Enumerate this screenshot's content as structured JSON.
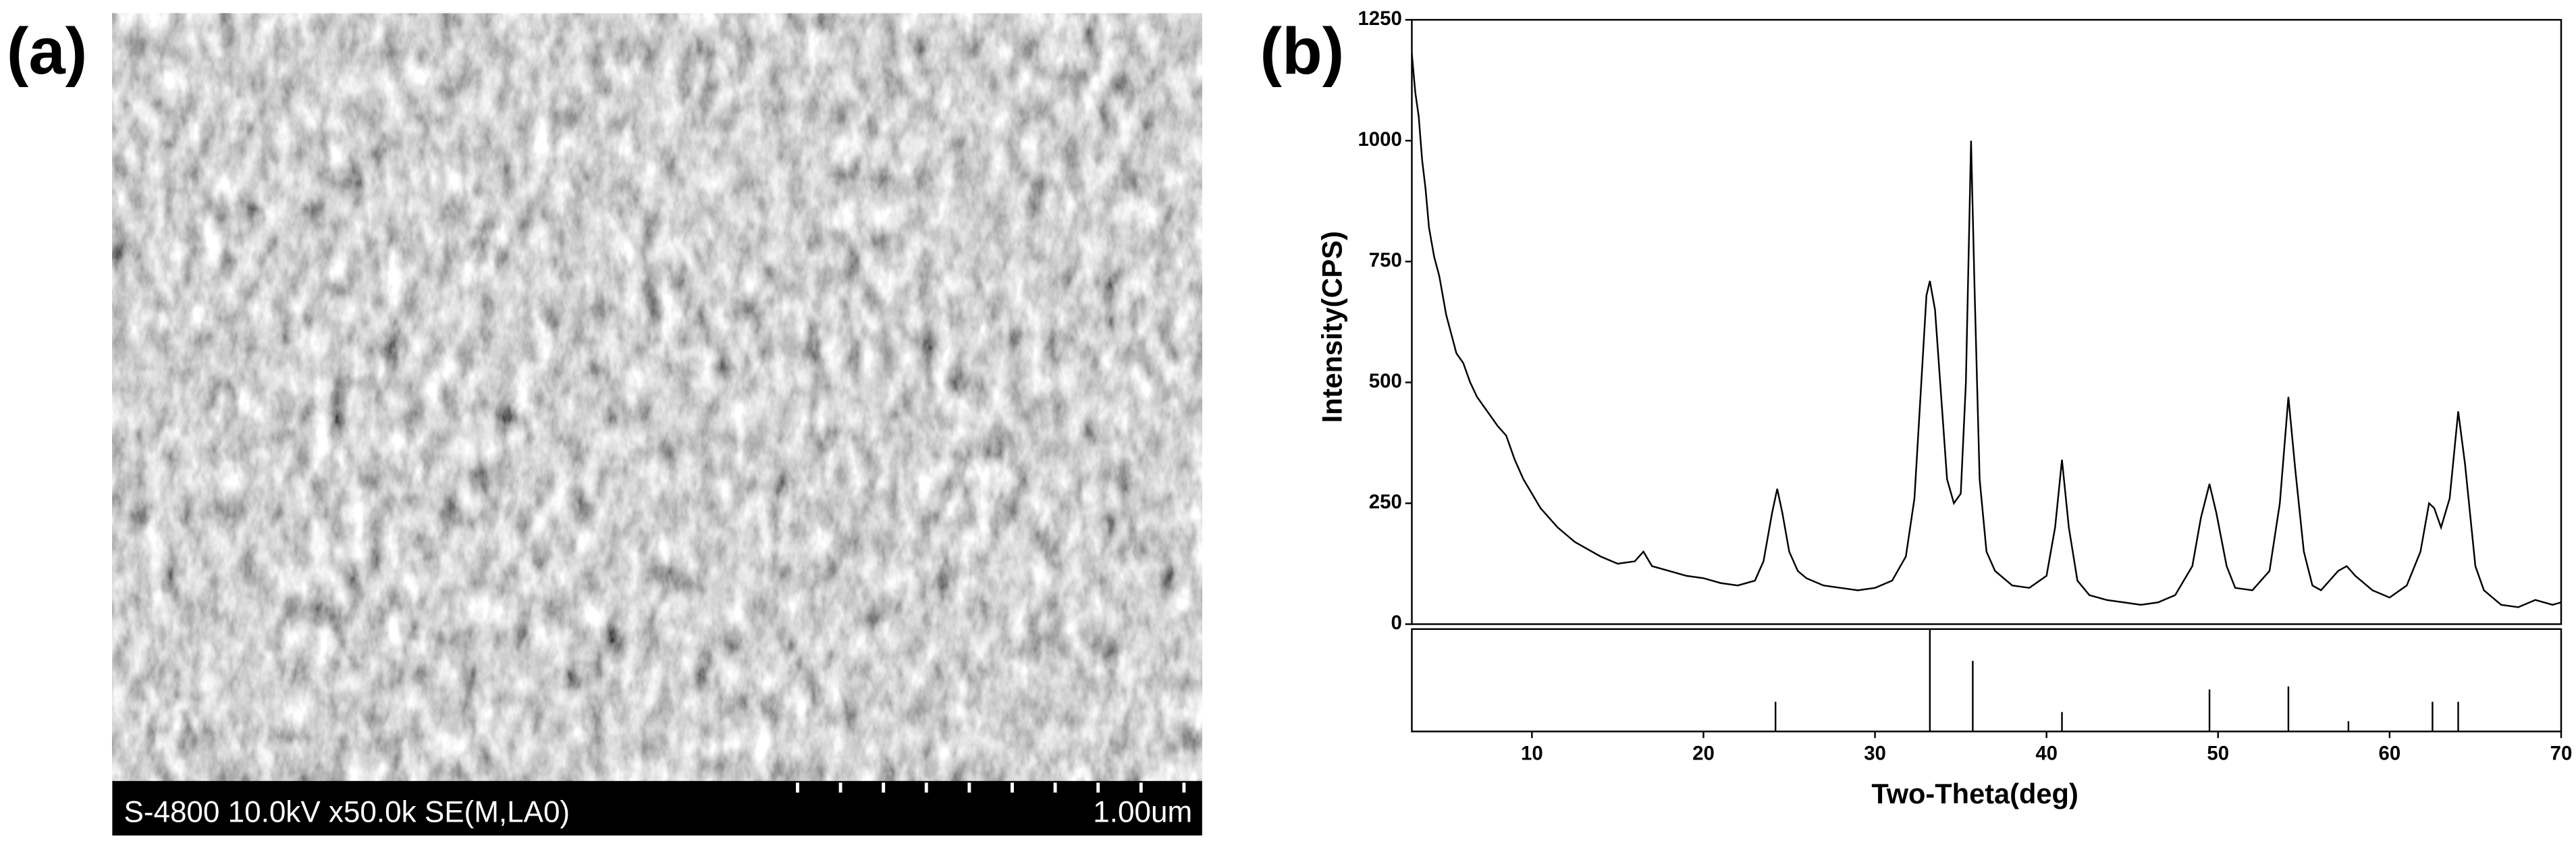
{
  "image_panel": {
    "label": "(a)",
    "info": "S-4800 10.0kV x50.0k SE(M,LA0)",
    "scale": "1.00um"
  },
  "chart_data": [
    {
      "type": "line",
      "label": "(b)",
      "ylabel": "Intensity(CPS)",
      "color": "#000000",
      "xlim": [
        3,
        70
      ],
      "ylim": [
        0,
        1250
      ],
      "yticks": [
        0,
        250,
        500,
        750,
        1000,
        1250
      ],
      "x": [
        3.0,
        3.2,
        3.4,
        3.6,
        3.8,
        4.0,
        4.3,
        4.6,
        5.0,
        5.3,
        5.6,
        6.0,
        6.4,
        6.8,
        7.2,
        7.6,
        8.0,
        8.5,
        9.0,
        9.5,
        10.0,
        10.5,
        11.0,
        11.5,
        12.0,
        12.5,
        13.0,
        14.0,
        15.0,
        16.0,
        16.5,
        17.0,
        18.0,
        19.0,
        20.0,
        21.0,
        22.0,
        23.0,
        23.5,
        24.0,
        24.3,
        24.6,
        25.0,
        25.5,
        26.0,
        27.0,
        28.0,
        29.0,
        30.0,
        31.0,
        31.8,
        32.3,
        32.7,
        33.0,
        33.2,
        33.5,
        33.8,
        34.2,
        34.6,
        35.0,
        35.3,
        35.6,
        35.8,
        36.1,
        36.5,
        37.0,
        38.0,
        39.0,
        40.0,
        40.5,
        40.9,
        41.3,
        41.8,
        42.5,
        43.5,
        44.5,
        45.5,
        46.5,
        47.5,
        48.5,
        49.0,
        49.5,
        49.9,
        50.5,
        51.0,
        52.0,
        53.0,
        53.6,
        54.1,
        54.5,
        55.0,
        55.5,
        56.0,
        57.0,
        57.5,
        58.0,
        59.0,
        60.0,
        61.0,
        61.8,
        62.3,
        62.6,
        63.0,
        63.5,
        64.0,
        64.4,
        65.0,
        65.5,
        66.5,
        67.5,
        68.5,
        69.5,
        70.0
      ],
      "values": [
        1180,
        1100,
        1050,
        960,
        900,
        820,
        760,
        720,
        640,
        600,
        560,
        540,
        500,
        470,
        450,
        430,
        410,
        390,
        340,
        300,
        270,
        240,
        220,
        200,
        185,
        170,
        160,
        140,
        125,
        130,
        150,
        120,
        110,
        100,
        95,
        85,
        80,
        90,
        130,
        230,
        280,
        230,
        150,
        110,
        95,
        80,
        75,
        70,
        75,
        90,
        140,
        260,
        500,
        680,
        710,
        650,
        500,
        300,
        250,
        270,
        500,
        1000,
        700,
        300,
        150,
        110,
        80,
        75,
        100,
        200,
        340,
        200,
        90,
        60,
        50,
        45,
        40,
        45,
        60,
        120,
        220,
        290,
        230,
        120,
        75,
        70,
        110,
        250,
        470,
        320,
        150,
        80,
        70,
        110,
        120,
        100,
        70,
        55,
        80,
        150,
        250,
        240,
        200,
        260,
        440,
        330,
        120,
        70,
        40,
        35,
        50,
        40,
        45
      ]
    },
    {
      "type": "stem",
      "xlabel": "Two-Theta(deg)",
      "color": "#000000",
      "xlim": [
        3,
        70
      ],
      "xticks": [
        10,
        20,
        30,
        40,
        50,
        60,
        70
      ],
      "ylim": [
        0,
        100
      ],
      "x": [
        24.2,
        33.2,
        35.7,
        40.9,
        49.5,
        54.1,
        57.6,
        62.5,
        64.0
      ],
      "values": [
        29,
        100,
        69,
        19,
        41,
        44,
        10,
        29,
        29
      ]
    }
  ]
}
